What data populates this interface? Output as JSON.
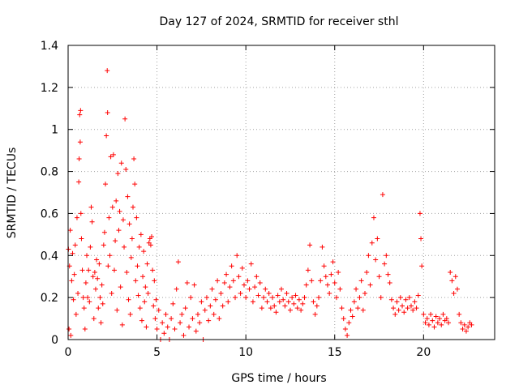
{
  "chart_data": {
    "type": "scatter",
    "title": "Day 127 of 2024, SRMTID for receiver sthl",
    "xlabel": "GPS time / hours",
    "ylabel": "SRMTID / TECUs",
    "xlim": [
      0,
      24
    ],
    "ylim": [
      0,
      1.4
    ],
    "x_ticks": [
      0,
      5,
      10,
      15,
      20
    ],
    "y_ticks": [
      0,
      0.2,
      0.4,
      0.6,
      0.8,
      1,
      1.2,
      1.4
    ],
    "x_tick_labels": [
      "0",
      "5",
      "10",
      "15",
      "20"
    ],
    "y_tick_labels": [
      "0",
      "0.2",
      "0.4",
      "0.6",
      "0.8",
      "1",
      "1.2",
      "1.4"
    ],
    "grid": true,
    "marker": "+",
    "color": "#ff0000",
    "series": [
      {
        "name": "sthl",
        "points": [
          [
            0.02,
            0.43
          ],
          [
            0.05,
            0.05
          ],
          [
            0.08,
            0.35
          ],
          [
            0.12,
            0.52
          ],
          [
            0.15,
            0.02
          ],
          [
            0.2,
            0.28
          ],
          [
            0.25,
            0.41
          ],
          [
            0.3,
            0.19
          ],
          [
            0.35,
            0.31
          ],
          [
            0.4,
            0.45
          ],
          [
            0.45,
            0.12
          ],
          [
            0.5,
            0.58
          ],
          [
            0.55,
            0.22
          ],
          [
            0.6,
            0.75
          ],
          [
            0.62,
            0.86
          ],
          [
            0.65,
            1.07
          ],
          [
            0.68,
            0.94
          ],
          [
            0.7,
            1.09
          ],
          [
            0.72,
            0.6
          ],
          [
            0.75,
            0.48
          ],
          [
            0.8,
            0.33
          ],
          [
            0.85,
            0.2
          ],
          [
            0.9,
            0.15
          ],
          [
            0.95,
            0.05
          ],
          [
            1.0,
            0.27
          ],
          [
            1.05,
            0.4
          ],
          [
            1.1,
            0.2
          ],
          [
            1.15,
            0.33
          ],
          [
            1.2,
            0.18
          ],
          [
            1.25,
            0.44
          ],
          [
            1.3,
            0.63
          ],
          [
            1.35,
            0.56
          ],
          [
            1.4,
            0.3
          ],
          [
            1.45,
            0.1
          ],
          [
            1.5,
            0.32
          ],
          [
            1.55,
            0.24
          ],
          [
            1.6,
            0.38
          ],
          [
            1.65,
            0.29
          ],
          [
            1.7,
            0.15
          ],
          [
            1.75,
            0.36
          ],
          [
            1.8,
            0.2
          ],
          [
            1.85,
            0.08
          ],
          [
            1.9,
            0.26
          ],
          [
            1.95,
            0.17
          ],
          [
            2.0,
            0.45
          ],
          [
            2.05,
            0.51
          ],
          [
            2.1,
            0.74
          ],
          [
            2.15,
            0.97
          ],
          [
            2.2,
            1.28
          ],
          [
            2.22,
            1.08
          ],
          [
            2.25,
            0.35
          ],
          [
            2.3,
            0.58
          ],
          [
            2.35,
            0.4
          ],
          [
            2.4,
            0.87
          ],
          [
            2.45,
            0.22
          ],
          [
            2.5,
            0.63
          ],
          [
            2.55,
            0.88
          ],
          [
            2.6,
            0.33
          ],
          [
            2.65,
            0.47
          ],
          [
            2.7,
            0.66
          ],
          [
            2.75,
            0.14
          ],
          [
            2.8,
            0.79
          ],
          [
            2.85,
            0.52
          ],
          [
            2.9,
            0.61
          ],
          [
            2.95,
            0.25
          ],
          [
            3.0,
            0.84
          ],
          [
            3.05,
            0.07
          ],
          [
            3.1,
            0.57
          ],
          [
            3.15,
            0.44
          ],
          [
            3.2,
            1.05
          ],
          [
            3.25,
            0.81
          ],
          [
            3.3,
            0.32
          ],
          [
            3.35,
            0.68
          ],
          [
            3.4,
            0.19
          ],
          [
            3.45,
            0.55
          ],
          [
            3.5,
            0.12
          ],
          [
            3.55,
            0.39
          ],
          [
            3.6,
            0.48
          ],
          [
            3.65,
            0.63
          ],
          [
            3.7,
            0.86
          ],
          [
            3.75,
            0.74
          ],
          [
            3.8,
            0.28
          ],
          [
            3.85,
            0.58
          ],
          [
            3.9,
            0.35
          ],
          [
            3.95,
            0.21
          ],
          [
            4.0,
            0.44
          ],
          [
            4.05,
            0.15
          ],
          [
            4.1,
            0.5
          ],
          [
            4.15,
            0.09
          ],
          [
            4.2,
            0.3
          ],
          [
            4.25,
            0.42
          ],
          [
            4.3,
            0.18
          ],
          [
            4.35,
            0.25
          ],
          [
            4.4,
            0.06
          ],
          [
            4.45,
            0.36
          ],
          [
            4.5,
            0.22
          ],
          [
            4.55,
            0.46
          ],
          [
            4.6,
            0.48
          ],
          [
            4.65,
            0.45
          ],
          [
            4.7,
            0.49
          ],
          [
            4.75,
            0.33
          ],
          [
            4.8,
            0.16
          ],
          [
            4.85,
            0.28
          ],
          [
            4.9,
            0.1
          ],
          [
            4.95,
            0.19
          ],
          [
            5.0,
            0.05
          ],
          [
            5.1,
            0.14
          ],
          [
            5.2,
            0.0
          ],
          [
            5.3,
            0.08
          ],
          [
            5.4,
            0.03
          ],
          [
            5.5,
            0.12
          ],
          [
            5.6,
            0.06
          ],
          [
            5.7,
            0.0
          ],
          [
            5.8,
            0.1
          ],
          [
            5.9,
            0.17
          ],
          [
            6.0,
            0.05
          ],
          [
            6.1,
            0.24
          ],
          [
            6.2,
            0.37
          ],
          [
            6.3,
            0.08
          ],
          [
            6.4,
            0.12
          ],
          [
            6.5,
            0.02
          ],
          [
            6.6,
            0.15
          ],
          [
            6.7,
            0.27
          ],
          [
            6.8,
            0.06
          ],
          [
            6.9,
            0.2
          ],
          [
            7.0,
            0.1
          ],
          [
            7.1,
            0.26
          ],
          [
            7.2,
            0.04
          ],
          [
            7.3,
            0.12
          ],
          [
            7.4,
            0.08
          ],
          [
            7.5,
            0.18
          ],
          [
            7.6,
            0.0
          ],
          [
            7.7,
            0.14
          ],
          [
            7.8,
            0.2
          ],
          [
            7.9,
            0.09
          ],
          [
            8.0,
            0.16
          ],
          [
            8.1,
            0.24
          ],
          [
            8.2,
            0.12
          ],
          [
            8.3,
            0.19
          ],
          [
            8.4,
            0.28
          ],
          [
            8.5,
            0.1
          ],
          [
            8.6,
            0.22
          ],
          [
            8.7,
            0.16
          ],
          [
            8.8,
            0.27
          ],
          [
            8.9,
            0.31
          ],
          [
            9.0,
            0.18
          ],
          [
            9.1,
            0.25
          ],
          [
            9.2,
            0.35
          ],
          [
            9.3,
            0.28
          ],
          [
            9.4,
            0.2
          ],
          [
            9.5,
            0.4
          ],
          [
            9.6,
            0.3
          ],
          [
            9.7,
            0.22
          ],
          [
            9.8,
            0.34
          ],
          [
            9.9,
            0.26
          ],
          [
            10.0,
            0.2
          ],
          [
            10.1,
            0.28
          ],
          [
            10.2,
            0.24
          ],
          [
            10.3,
            0.36
          ],
          [
            10.4,
            0.18
          ],
          [
            10.5,
            0.25
          ],
          [
            10.6,
            0.3
          ],
          [
            10.7,
            0.21
          ],
          [
            10.8,
            0.27
          ],
          [
            10.9,
            0.15
          ],
          [
            11.0,
            0.2
          ],
          [
            11.1,
            0.24
          ],
          [
            11.2,
            0.18
          ],
          [
            11.3,
            0.22
          ],
          [
            11.4,
            0.15
          ],
          [
            11.5,
            0.2
          ],
          [
            11.6,
            0.16
          ],
          [
            11.7,
            0.13
          ],
          [
            11.8,
            0.21
          ],
          [
            11.9,
            0.18
          ],
          [
            12.0,
            0.24
          ],
          [
            12.1,
            0.19
          ],
          [
            12.2,
            0.16
          ],
          [
            12.3,
            0.22
          ],
          [
            12.4,
            0.18
          ],
          [
            12.5,
            0.14
          ],
          [
            12.6,
            0.2
          ],
          [
            12.7,
            0.17
          ],
          [
            12.8,
            0.21
          ],
          [
            12.9,
            0.15
          ],
          [
            13.0,
            0.19
          ],
          [
            13.1,
            0.14
          ],
          [
            13.2,
            0.17
          ],
          [
            13.3,
            0.2
          ],
          [
            13.4,
            0.26
          ],
          [
            13.5,
            0.33
          ],
          [
            13.6,
            0.45
          ],
          [
            13.7,
            0.28
          ],
          [
            13.8,
            0.18
          ],
          [
            13.9,
            0.12
          ],
          [
            14.0,
            0.16
          ],
          [
            14.1,
            0.2
          ],
          [
            14.2,
            0.28
          ],
          [
            14.3,
            0.44
          ],
          [
            14.4,
            0.35
          ],
          [
            14.5,
            0.3
          ],
          [
            14.6,
            0.26
          ],
          [
            14.7,
            0.22
          ],
          [
            14.8,
            0.31
          ],
          [
            14.9,
            0.37
          ],
          [
            15.0,
            0.27
          ],
          [
            15.1,
            0.2
          ],
          [
            15.2,
            0.32
          ],
          [
            15.3,
            0.24
          ],
          [
            15.4,
            0.15
          ],
          [
            15.5,
            0.1
          ],
          [
            15.6,
            0.05
          ],
          [
            15.7,
            0.02
          ],
          [
            15.8,
            0.08
          ],
          [
            15.9,
            0.14
          ],
          [
            16.0,
            0.11
          ],
          [
            16.1,
            0.18
          ],
          [
            16.2,
            0.24
          ],
          [
            16.3,
            0.15
          ],
          [
            16.4,
            0.2
          ],
          [
            16.5,
            0.28
          ],
          [
            16.6,
            0.14
          ],
          [
            16.7,
            0.22
          ],
          [
            16.8,
            0.32
          ],
          [
            16.9,
            0.4
          ],
          [
            17.0,
            0.26
          ],
          [
            17.1,
            0.46
          ],
          [
            17.2,
            0.58
          ],
          [
            17.3,
            0.38
          ],
          [
            17.4,
            0.48
          ],
          [
            17.5,
            0.3
          ],
          [
            17.6,
            0.2
          ],
          [
            17.7,
            0.69
          ],
          [
            17.8,
            0.36
          ],
          [
            17.9,
            0.4
          ],
          [
            18.0,
            0.31
          ],
          [
            18.1,
            0.27
          ],
          [
            18.2,
            0.19
          ],
          [
            18.3,
            0.15
          ],
          [
            18.4,
            0.12
          ],
          [
            18.5,
            0.18
          ],
          [
            18.6,
            0.14
          ],
          [
            18.7,
            0.2
          ],
          [
            18.8,
            0.16
          ],
          [
            18.9,
            0.13
          ],
          [
            19.0,
            0.19
          ],
          [
            19.1,
            0.15
          ],
          [
            19.2,
            0.2
          ],
          [
            19.3,
            0.16
          ],
          [
            19.4,
            0.14
          ],
          [
            19.5,
            0.18
          ],
          [
            19.6,
            0.15
          ],
          [
            19.7,
            0.21
          ],
          [
            19.8,
            0.6
          ],
          [
            19.85,
            0.48
          ],
          [
            19.9,
            0.35
          ],
          [
            20.0,
            0.12
          ],
          [
            20.1,
            0.08
          ],
          [
            20.2,
            0.1
          ],
          [
            20.3,
            0.07
          ],
          [
            20.4,
            0.12
          ],
          [
            20.5,
            0.09
          ],
          [
            20.6,
            0.06
          ],
          [
            20.7,
            0.11
          ],
          [
            20.8,
            0.08
          ],
          [
            20.9,
            0.1
          ],
          [
            21.0,
            0.07
          ],
          [
            21.1,
            0.12
          ],
          [
            21.2,
            0.09
          ],
          [
            21.3,
            0.1
          ],
          [
            21.4,
            0.08
          ],
          [
            21.5,
            0.32
          ],
          [
            21.6,
            0.28
          ],
          [
            21.7,
            0.22
          ],
          [
            21.8,
            0.3
          ],
          [
            21.9,
            0.24
          ],
          [
            22.0,
            0.12
          ],
          [
            22.1,
            0.08
          ],
          [
            22.2,
            0.05
          ],
          [
            22.3,
            0.07
          ],
          [
            22.4,
            0.04
          ],
          [
            22.5,
            0.06
          ],
          [
            22.6,
            0.08
          ],
          [
            22.7,
            0.07
          ]
        ]
      }
    ]
  }
}
